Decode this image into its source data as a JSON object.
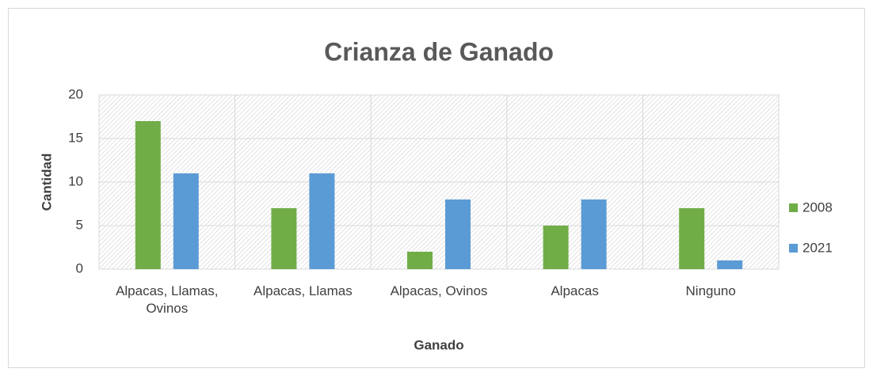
{
  "chart_data": {
    "type": "bar",
    "title": "Crianza de Ganado",
    "x_label": "Ganado",
    "y_label": "Cantidad",
    "categories": [
      "Alpacas, Llamas, Ovinos",
      "Alpacas, Llamas",
      "Alpacas, Ovinos",
      "Alpacas",
      "Ninguno"
    ],
    "series": [
      {
        "name": "2008",
        "color": "#70ad47",
        "values": [
          17,
          7,
          2,
          5,
          7
        ]
      },
      {
        "name": "2021",
        "color": "#5b9bd5",
        "values": [
          11,
          11,
          8,
          8,
          1
        ]
      }
    ],
    "ylim": [
      0,
      20
    ],
    "yticks": [
      0,
      5,
      10,
      15,
      20
    ],
    "grid": true,
    "legend": "right"
  }
}
